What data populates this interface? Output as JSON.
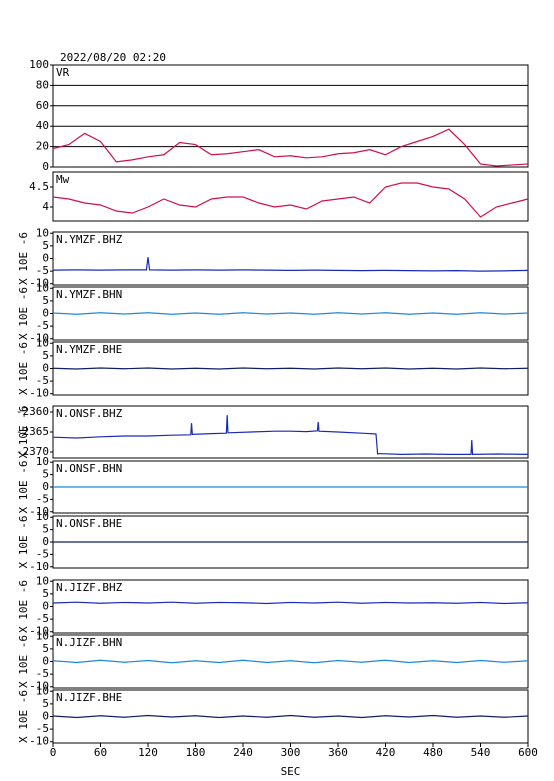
{
  "chart_data": [
    {
      "type": "line",
      "title": "2022/08/20 02:20",
      "panel_label": "VR",
      "xlim": [
        0,
        600
      ],
      "ylim": [
        0,
        100
      ],
      "yticks": [
        0,
        20,
        40,
        60,
        80,
        100
      ],
      "grid": true,
      "x": [
        0,
        20,
        40,
        60,
        80,
        100,
        120,
        140,
        160,
        180,
        200,
        220,
        240,
        260,
        280,
        300,
        320,
        340,
        360,
        380,
        400,
        420,
        440,
        460,
        480,
        500,
        520,
        540,
        560,
        580,
        600
      ],
      "series": [
        {
          "color": "#d01048",
          "values": [
            18,
            22,
            33,
            25,
            5,
            7,
            10,
            12,
            24,
            22,
            12,
            13,
            15,
            17,
            10,
            11,
            9,
            10,
            13,
            14,
            17,
            12,
            20,
            25,
            30,
            37,
            22,
            3,
            1,
            2,
            3
          ]
        }
      ]
    },
    {
      "type": "line",
      "panel_label": "Mw",
      "xlim": [
        0,
        600
      ],
      "ylim": [
        3.65,
        4.875
      ],
      "yticks": [
        4.0,
        4.5
      ],
      "x": [
        0,
        20,
        40,
        60,
        80,
        100,
        120,
        140,
        160,
        180,
        200,
        220,
        240,
        260,
        280,
        300,
        320,
        340,
        360,
        380,
        400,
        420,
        440,
        460,
        480,
        500,
        520,
        540,
        560,
        580,
        600
      ],
      "series": [
        {
          "color": "#d01048",
          "values": [
            4.25,
            4.2,
            4.1,
            4.05,
            3.9,
            3.85,
            4.0,
            4.2,
            4.05,
            4.0,
            4.2,
            4.25,
            4.25,
            4.1,
            4.0,
            4.05,
            3.95,
            4.15,
            4.2,
            4.25,
            4.1,
            4.5,
            4.6,
            4.6,
            4.5,
            4.45,
            4.2,
            3.75,
            4.0,
            4.1,
            4.2
          ]
        }
      ]
    },
    {
      "type": "line",
      "panel_label": "N.YMZF.BHZ",
      "ylabel": "X 10E -6",
      "xlim": [
        0,
        600
      ],
      "ylim": [
        -10.5,
        10.5
      ],
      "yticks": [
        -10,
        -5,
        0,
        5,
        10
      ],
      "x": [
        0,
        30,
        60,
        90,
        118,
        120,
        122,
        150,
        180,
        210,
        240,
        270,
        300,
        330,
        360,
        390,
        420,
        450,
        480,
        510,
        540,
        570,
        600
      ],
      "series": [
        {
          "color": "#1a2ab8",
          "values": [
            -4.6,
            -4.5,
            -4.6,
            -4.5,
            -4.5,
            0.5,
            -4.5,
            -4.6,
            -4.5,
            -4.6,
            -4.5,
            -4.6,
            -4.7,
            -4.6,
            -4.7,
            -4.8,
            -4.7,
            -4.8,
            -4.9,
            -4.8,
            -5.0,
            -4.9,
            -4.7
          ]
        }
      ]
    },
    {
      "type": "line",
      "panel_label": "N.YMZF.BHN",
      "ylabel": "X 10E -6",
      "xlim": [
        0,
        600
      ],
      "ylim": [
        -10.5,
        10.5
      ],
      "yticks": [
        -10,
        -5,
        0,
        5,
        10
      ],
      "x": [
        0,
        30,
        60,
        90,
        120,
        150,
        180,
        210,
        240,
        270,
        300,
        330,
        360,
        390,
        420,
        450,
        480,
        510,
        540,
        570,
        600
      ],
      "series": [
        {
          "color": "#1a8ad8",
          "values": [
            0.2,
            -0.3,
            0.3,
            -0.2,
            0.3,
            -0.3,
            0.2,
            -0.3,
            0.3,
            -0.2,
            0.2,
            -0.3,
            0.3,
            -0.2,
            0.3,
            -0.3,
            0.2,
            -0.3,
            0.3,
            -0.2,
            0.2
          ]
        }
      ]
    },
    {
      "type": "line",
      "panel_label": "N.YMZF.BHE",
      "ylabel": "X 10E -6",
      "xlim": [
        0,
        600
      ],
      "ylim": [
        -10.5,
        10.5
      ],
      "yticks": [
        -10,
        -5,
        0,
        5,
        10
      ],
      "x": [
        0,
        30,
        60,
        90,
        120,
        150,
        180,
        210,
        240,
        270,
        300,
        330,
        360,
        390,
        420,
        450,
        480,
        510,
        540,
        570,
        600
      ],
      "series": [
        {
          "color": "#101e68",
          "values": [
            0.1,
            -0.2,
            0.2,
            -0.1,
            0.2,
            -0.2,
            0.1,
            -0.2,
            0.2,
            -0.1,
            0.1,
            -0.2,
            0.2,
            -0.1,
            0.2,
            -0.2,
            0.1,
            -0.2,
            0.2,
            -0.1,
            0.1
          ]
        }
      ]
    },
    {
      "type": "line",
      "panel_label": "N.ONSF.BHZ",
      "ylabel": "X 10E -6",
      "xlim": [
        0,
        600
      ],
      "ylim": [
        -2371.5,
        -2358.5
      ],
      "yticks": [
        -2370,
        -2365,
        -2360
      ],
      "x": [
        0,
        30,
        60,
        90,
        120,
        150,
        174,
        175,
        176,
        200,
        219,
        220,
        221,
        250,
        280,
        300,
        320,
        334,
        335,
        336,
        360,
        390,
        408,
        410,
        412,
        440,
        470,
        500,
        528,
        529,
        530,
        560,
        600
      ],
      "series": [
        {
          "color": "#1a2ab8",
          "values": [
            -2366.3,
            -2366.5,
            -2366.2,
            -2366.0,
            -2366.0,
            -2365.8,
            -2365.7,
            -2362.8,
            -2365.6,
            -2365.4,
            -2365.3,
            -2360.8,
            -2365.2,
            -2365.0,
            -2364.8,
            -2364.8,
            -2364.9,
            -2364.7,
            -2362.5,
            -2364.8,
            -2365.0,
            -2365.3,
            -2365.5,
            -2370.5,
            -2370.4,
            -2370.6,
            -2370.5,
            -2370.6,
            -2370.6,
            -2367.0,
            -2370.6,
            -2370.5,
            -2370.6
          ]
        }
      ]
    },
    {
      "type": "line",
      "panel_label": "N.ONSF.BHN",
      "ylabel": "X 10E -6",
      "xlim": [
        0,
        600
      ],
      "ylim": [
        -10.5,
        10.5
      ],
      "yticks": [
        -10,
        -5,
        0,
        5,
        10
      ],
      "x": [
        0,
        600
      ],
      "series": [
        {
          "color": "#1a8ad8",
          "values": [
            0,
            0
          ]
        }
      ]
    },
    {
      "type": "line",
      "panel_label": "N.ONSF.BHE",
      "ylabel": "X 10E -6",
      "xlim": [
        0,
        600
      ],
      "ylim": [
        -10.5,
        10.5
      ],
      "yticks": [
        -10,
        -5,
        0,
        5,
        10
      ],
      "x": [
        0,
        600
      ],
      "series": [
        {
          "color": "#101e68",
          "values": [
            0,
            0
          ]
        }
      ]
    },
    {
      "type": "line",
      "panel_label": "N.JIZF.BHZ",
      "ylabel": "X 10E -6",
      "xlim": [
        0,
        600
      ],
      "ylim": [
        -10.5,
        10.5
      ],
      "yticks": [
        -10,
        -5,
        0,
        5,
        10
      ],
      "x": [
        0,
        30,
        60,
        90,
        120,
        150,
        180,
        210,
        240,
        270,
        300,
        330,
        360,
        390,
        420,
        450,
        480,
        510,
        540,
        570,
        600
      ],
      "series": [
        {
          "color": "#1a2ab8",
          "values": [
            1.4,
            1.7,
            1.3,
            1.6,
            1.4,
            1.7,
            1.3,
            1.6,
            1.5,
            1.2,
            1.6,
            1.4,
            1.7,
            1.3,
            1.6,
            1.4,
            1.5,
            1.3,
            1.6,
            1.2,
            1.5
          ]
        }
      ]
    },
    {
      "type": "line",
      "panel_label": "N.JIZF.BHN",
      "ylabel": "X 10E -6",
      "xlim": [
        0,
        600
      ],
      "ylim": [
        -10.5,
        10.5
      ],
      "yticks": [
        -10,
        -5,
        0,
        5,
        10
      ],
      "x": [
        0,
        30,
        60,
        90,
        120,
        150,
        180,
        210,
        240,
        270,
        300,
        330,
        360,
        390,
        420,
        450,
        480,
        510,
        540,
        570,
        600
      ],
      "series": [
        {
          "color": "#1a8ad8",
          "values": [
            0.3,
            -0.4,
            0.5,
            -0.3,
            0.4,
            -0.5,
            0.3,
            -0.4,
            0.5,
            -0.4,
            0.3,
            -0.5,
            0.4,
            -0.3,
            0.5,
            -0.4,
            0.3,
            -0.4,
            0.4,
            -0.3,
            0.3
          ]
        }
      ]
    },
    {
      "type": "line",
      "panel_label": "N.JIZF.BHE",
      "ylabel": "X 10E -6",
      "xlabel": "SEC",
      "xlim": [
        0,
        600
      ],
      "ylim": [
        -10.5,
        10.5
      ],
      "yticks": [
        -10,
        -5,
        0,
        5,
        10
      ],
      "xticks": [
        0,
        60,
        120,
        180,
        240,
        300,
        360,
        420,
        480,
        540,
        600
      ],
      "x": [
        0,
        30,
        60,
        90,
        120,
        150,
        180,
        210,
        240,
        270,
        300,
        330,
        360,
        390,
        420,
        450,
        480,
        510,
        540,
        570,
        600
      ],
      "series": [
        {
          "color": "#101e68",
          "values": [
            0.2,
            -0.4,
            0.3,
            -0.3,
            0.4,
            -0.2,
            0.3,
            -0.4,
            0.2,
            -0.3,
            0.4,
            -0.3,
            0.2,
            -0.4,
            0.3,
            -0.2,
            0.4,
            -0.3,
            0.2,
            -0.3,
            0.2
          ]
        }
      ]
    }
  ]
}
